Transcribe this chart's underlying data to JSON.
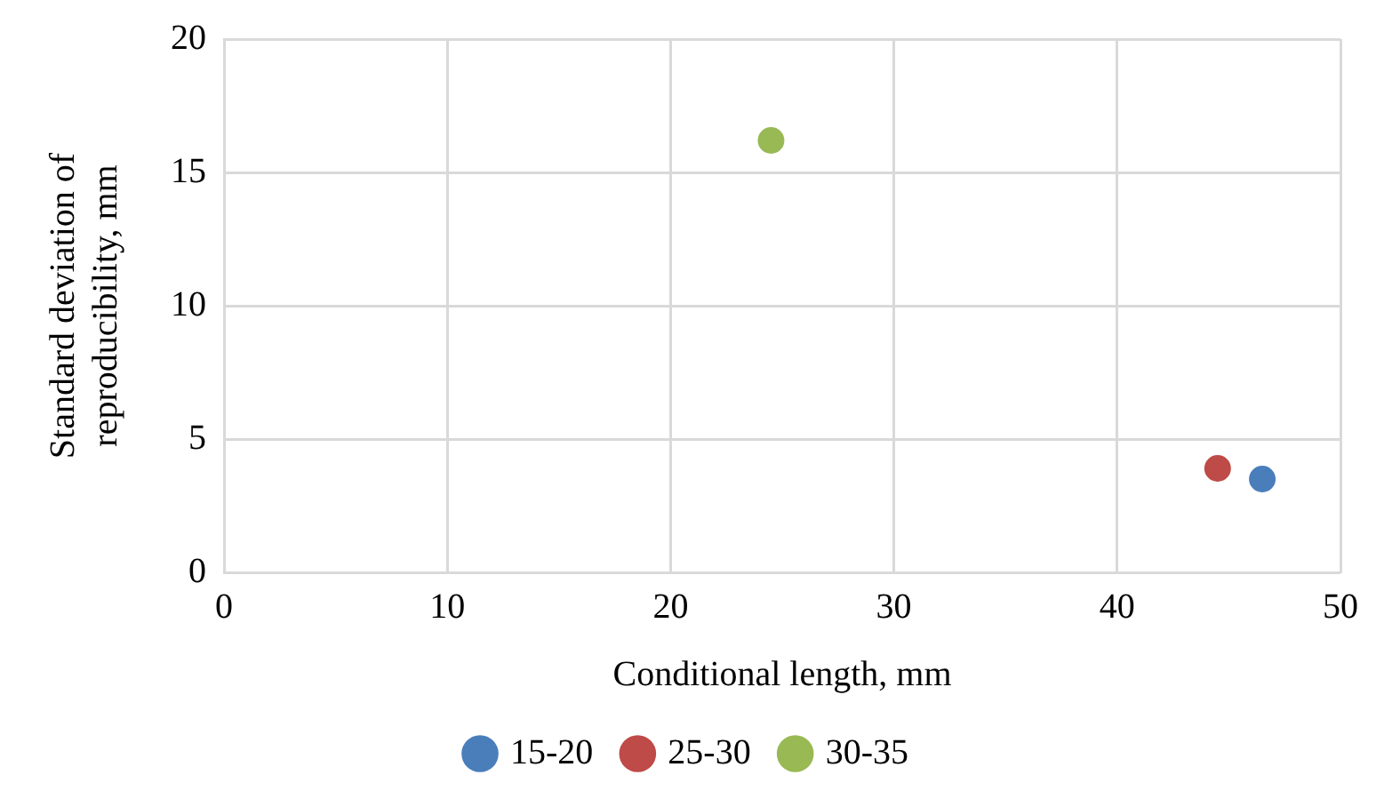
{
  "chart_data": {
    "type": "scatter",
    "xlabel": "Conditional length, mm",
    "ylabel": "Standard deviation of reproducibility, mm",
    "series": [
      {
        "name": "15-20",
        "color": "#4a7ebb",
        "x": [
          46.5
        ],
        "values": [
          3.5
        ]
      },
      {
        "name": "25-30",
        "color": "#be4b48",
        "x": [
          44.5
        ],
        "values": [
          3.9
        ]
      },
      {
        "name": "30-35",
        "color": "#98b954",
        "x": [
          24.5
        ],
        "values": [
          16.2
        ]
      }
    ],
    "xlim": [
      0,
      50
    ],
    "xticks": [
      0,
      10,
      20,
      30,
      40,
      50
    ],
    "ylim": [
      0,
      20
    ],
    "yticks": [
      0,
      5,
      10,
      15,
      20
    ],
    "grid": true,
    "legend": "bottom",
    "marker": "circle"
  }
}
